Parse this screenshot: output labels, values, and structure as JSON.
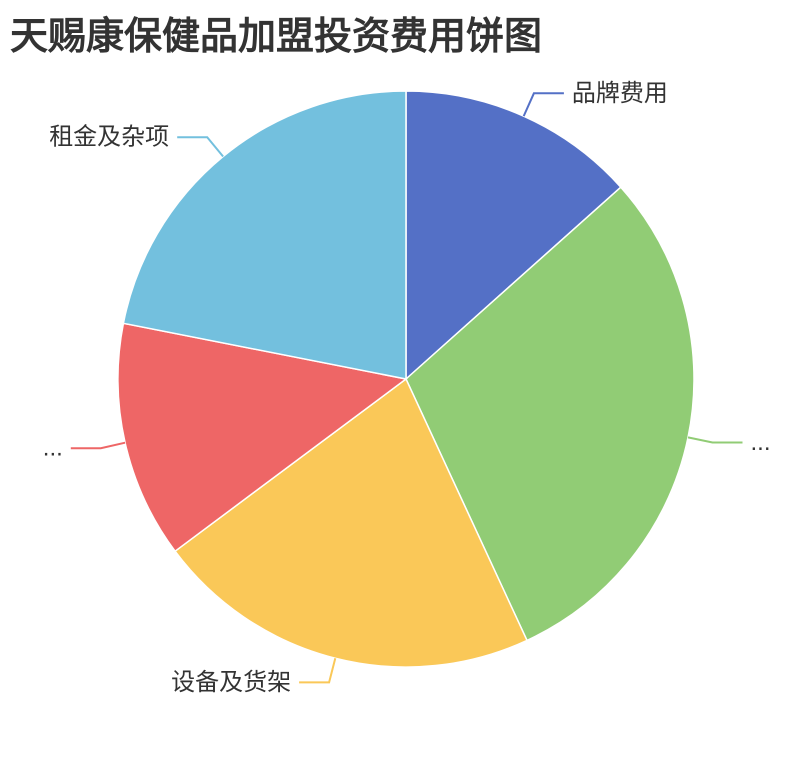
{
  "title": {
    "text": "天赐康保健品加盟投资费用饼图",
    "color": "#333333"
  },
  "chart_data": {
    "type": "pie",
    "title": "天赐康保健品加盟投资费用饼图",
    "legend": "none",
    "direction": "clockwise",
    "start_angle_deg": 0,
    "label_color": "#333333",
    "slice_border_color": "#ffffff",
    "slices": [
      {
        "label": "品牌费用",
        "percent": 13.4,
        "color": "#5470C6"
      },
      {
        "label": "...",
        "percent": 29.7,
        "color": "#91CC75"
      },
      {
        "label": "设备及货架",
        "percent": 21.7,
        "color": "#FAC858"
      },
      {
        "label": "...",
        "percent": 13.3,
        "color": "#EE6666"
      },
      {
        "label": "租金及杂项",
        "percent": 21.9,
        "color": "#73C0DE"
      }
    ]
  }
}
